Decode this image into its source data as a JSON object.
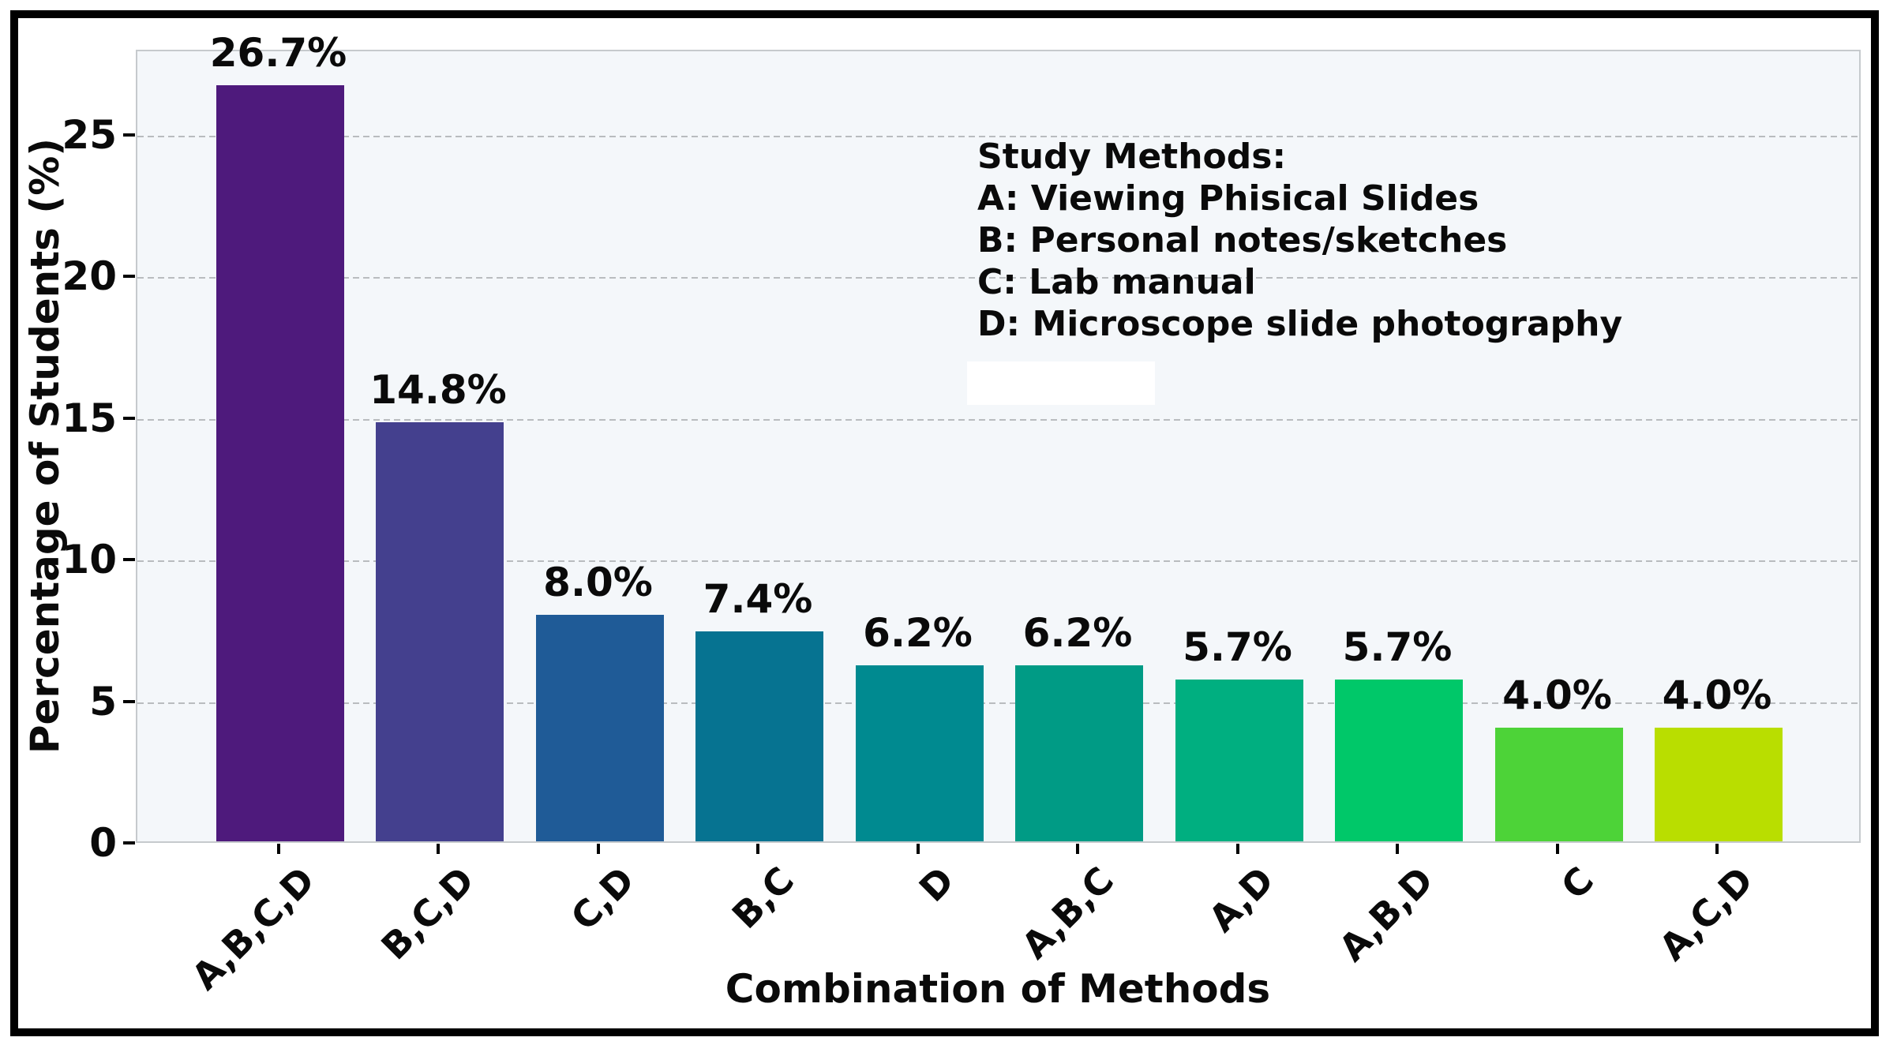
{
  "chart_data": {
    "type": "bar",
    "title": "",
    "xlabel": "Combination of Methods",
    "ylabel": "Percentage of Students (%)",
    "categories": [
      "A,B,C,D",
      "B,C,D",
      "C,D",
      "B,C",
      "D",
      "A,B,C",
      "A,D",
      "A,B,D",
      "C",
      "A,C,D"
    ],
    "values": [
      26.7,
      14.8,
      8.0,
      7.4,
      6.2,
      6.2,
      5.7,
      5.7,
      4.0,
      4.0
    ],
    "value_labels": [
      "26.7%",
      "14.8%",
      "8.0%",
      "7.4%",
      "6.2%",
      "6.2%",
      "5.7%",
      "5.7%",
      "4.0%",
      "4.0%"
    ],
    "bar_colors": [
      "#4e1a7c",
      "#44408e",
      "#1f5b97",
      "#067391",
      "#008a90",
      "#009b85",
      "#00af80",
      "#00c869",
      "#4dd338",
      "#b9de00"
    ],
    "yticks": [
      0,
      5,
      10,
      15,
      20,
      25
    ],
    "ylim": [
      0,
      28
    ],
    "grid": "horizontal-dashed",
    "legend_position": "upper-right-inside",
    "annotation_lines": [
      "Study Methods:",
      "A: Viewing Phisical Slides",
      "B: Personal notes/sketches",
      "C: Lab manual",
      "D: Microscope slide photography"
    ]
  },
  "colors": {
    "figure_background": "#ffffff",
    "plot_background": "#f4f7fa",
    "frame_border": "#000000",
    "gridline": "#b9bcbf",
    "text": "#0a0a0a"
  }
}
